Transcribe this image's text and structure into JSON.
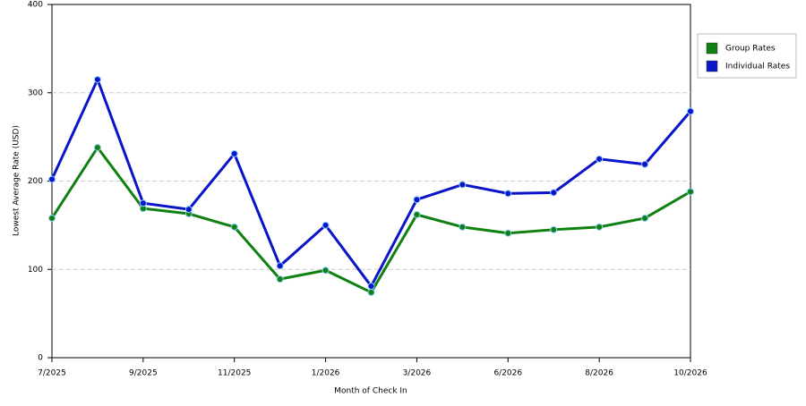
{
  "chart_data": {
    "type": "line",
    "x_label": "Month of Check In",
    "y_label": "Lowest Average Rate (USD)",
    "categories": [
      "7/2025",
      null,
      "9/2025",
      null,
      "11/2025",
      null,
      "1/2026",
      null,
      "3/2026",
      null,
      "6/2026",
      null,
      "8/2026",
      null,
      "10/2026"
    ],
    "series": [
      {
        "name": "Group Rates",
        "color": "#108010",
        "values": [
          158,
          238,
          169,
          163,
          148,
          89,
          99,
          74,
          162,
          148,
          141,
          145,
          148,
          158,
          188
        ]
      },
      {
        "name": "Individual Rates",
        "color": "#0a14c8",
        "values": [
          202,
          315,
          175,
          168,
          231,
          104,
          150,
          81,
          179,
          196,
          186,
          187,
          225,
          219,
          279
        ]
      }
    ],
    "ylim": [
      0,
      400
    ],
    "yticks": [
      0,
      100,
      200,
      300,
      400
    ],
    "grid": true,
    "legend": "right"
  }
}
